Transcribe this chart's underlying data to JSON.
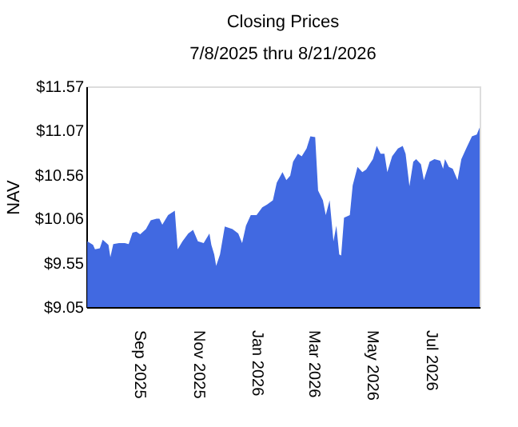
{
  "chart_data": {
    "type": "area",
    "title": "Closing Prices",
    "subtitle": "7/8/2025 thru 8/21/2026",
    "ylabel": "NAV",
    "xlim": [
      "2025-07-08",
      "2026-08-21"
    ],
    "xticks": [
      {
        "value": "2025-09-01",
        "label": "Sep 2025"
      },
      {
        "value": "2025-11-01",
        "label": "Nov 2025"
      },
      {
        "value": "2026-01-01",
        "label": "Jan 2026"
      },
      {
        "value": "2026-03-01",
        "label": "Mar 2026"
      },
      {
        "value": "2026-05-01",
        "label": "May 2026"
      },
      {
        "value": "2026-07-01",
        "label": "Jul 2026"
      }
    ],
    "ylim": [
      9.05,
      11.57
    ],
    "yticks": [
      {
        "value": 9.05,
        "label": "$9.05"
      },
      {
        "value": 9.55,
        "label": "$9.55"
      },
      {
        "value": 10.06,
        "label": "$10.06"
      },
      {
        "value": 10.56,
        "label": "$10.56"
      },
      {
        "value": 11.07,
        "label": "$11.07"
      },
      {
        "value": 11.57,
        "label": "$11.57"
      }
    ],
    "grid": false,
    "x": [
      "2025-07-09",
      "2025-07-15",
      "2025-07-17",
      "2025-07-22",
      "2025-07-25",
      "2025-07-31",
      "2025-08-02",
      "2025-08-05",
      "2025-08-11",
      "2025-08-17",
      "2025-08-21",
      "2025-08-25",
      "2025-08-29",
      "2025-09-02",
      "2025-09-08",
      "2025-09-13",
      "2025-09-19",
      "2025-09-22",
      "2025-09-25",
      "2025-10-01",
      "2025-10-08",
      "2025-10-11",
      "2025-10-16",
      "2025-10-22",
      "2025-10-27",
      "2025-11-01",
      "2025-11-07",
      "2025-11-13",
      "2025-11-15",
      "2025-11-18",
      "2025-11-20",
      "2025-11-24",
      "2025-11-29",
      "2025-12-07",
      "2025-12-13",
      "2025-12-17",
      "2025-12-21",
      "2025-12-26",
      "2026-01-01",
      "2026-01-07",
      "2026-01-12",
      "2026-01-18",
      "2026-01-22",
      "2026-01-28",
      "2026-02-01",
      "2026-02-05",
      "2026-02-08",
      "2026-02-13",
      "2026-02-17",
      "2026-02-22",
      "2026-02-26",
      "2026-03-03",
      "2026-03-06",
      "2026-03-11",
      "2026-03-14",
      "2026-03-18",
      "2026-03-22",
      "2026-03-25",
      "2026-03-28",
      "2026-03-30",
      "2026-04-02",
      "2026-04-08",
      "2026-04-11",
      "2026-04-16",
      "2026-04-21",
      "2026-04-25",
      "2026-05-02",
      "2026-05-06",
      "2026-05-10",
      "2026-05-14",
      "2026-05-17",
      "2026-05-22",
      "2026-05-28",
      "2026-06-02",
      "2026-06-05",
      "2026-06-09",
      "2026-06-13",
      "2026-06-16",
      "2026-06-21",
      "2026-06-24",
      "2026-06-30",
      "2026-07-05",
      "2026-07-11",
      "2026-07-14",
      "2026-07-16",
      "2026-07-20",
      "2026-07-24",
      "2026-07-29",
      "2026-08-02",
      "2026-08-07",
      "2026-08-13",
      "2026-08-18",
      "2026-08-21"
    ],
    "series": [
      {
        "color": "#4169e1",
        "values": [
          9.8,
          9.76,
          9.71,
          9.72,
          9.82,
          9.76,
          9.62,
          9.77,
          9.78,
          9.78,
          9.77,
          9.9,
          9.91,
          9.88,
          9.94,
          10.04,
          10.06,
          10.06,
          9.99,
          10.1,
          10.15,
          9.71,
          9.8,
          9.89,
          9.93,
          9.8,
          9.78,
          9.89,
          9.76,
          9.65,
          9.52,
          9.65,
          9.97,
          9.94,
          9.89,
          9.78,
          9.98,
          10.1,
          10.1,
          10.19,
          10.22,
          10.27,
          10.47,
          10.59,
          10.5,
          10.55,
          10.71,
          10.8,
          10.77,
          10.86,
          11.0,
          10.99,
          10.38,
          10.27,
          10.1,
          10.27,
          9.8,
          9.98,
          9.65,
          9.64,
          10.07,
          10.1,
          10.44,
          10.65,
          10.59,
          10.62,
          10.74,
          10.89,
          10.8,
          10.8,
          10.59,
          10.77,
          10.86,
          10.89,
          10.8,
          10.43,
          10.71,
          10.74,
          10.68,
          10.5,
          10.71,
          10.74,
          10.72,
          10.63,
          10.74,
          10.65,
          10.63,
          10.5,
          10.74,
          10.86,
          11.0,
          11.02,
          11.1
        ]
      }
    ],
    "marker": "none"
  }
}
